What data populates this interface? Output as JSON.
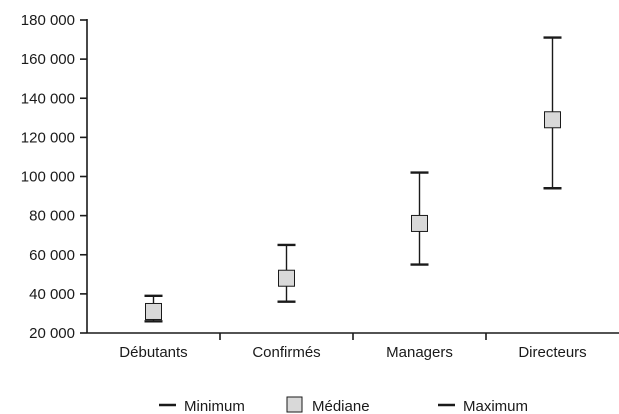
{
  "chart_data": {
    "type": "range",
    "title": "",
    "xlabel": "",
    "ylabel": "",
    "categories": [
      "Débutants",
      "Confirmés",
      "Managers",
      "Directeurs"
    ],
    "ylim": [
      20000,
      180000
    ],
    "yticks": [
      20000,
      40000,
      60000,
      80000,
      100000,
      120000,
      140000,
      160000,
      180000
    ],
    "ytick_labels": [
      "20 000",
      "40 000",
      "60 000",
      "80 000",
      "100 000",
      "120 000",
      "140 000",
      "160 000",
      "180 000"
    ],
    "series": [
      {
        "name": "Minimum",
        "values": [
          26000,
          36000,
          55000,
          94000
        ]
      },
      {
        "name": "Médiane",
        "values": [
          31000,
          48000,
          76000,
          129000
        ]
      },
      {
        "name": "Maximum",
        "values": [
          39000,
          65000,
          102000,
          171000
        ]
      }
    ],
    "grid": false,
    "legend_position": "bottom",
    "colors": {
      "line": "#1a1a1a",
      "marker_fill": "#d9d9d9",
      "marker_stroke": "#1a1a1a"
    }
  }
}
